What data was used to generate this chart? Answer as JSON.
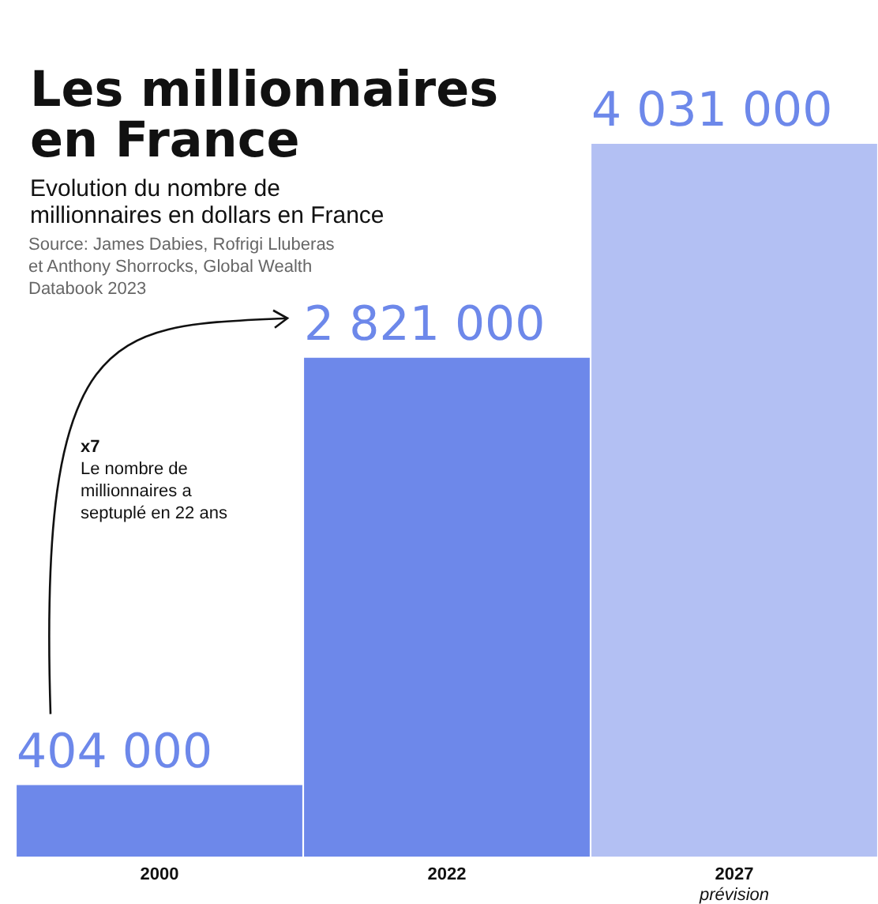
{
  "chart_data": {
    "type": "bar",
    "title": "Les millionnaires en France",
    "subtitle": "Evolution du nombre de millionnaires en dollars en France",
    "categories": [
      "2000",
      "2022",
      "2027"
    ],
    "values": [
      404000,
      2821000,
      4031000
    ],
    "colors": [
      "#6d88ea",
      "#6d88ea",
      "#b3c0f3"
    ],
    "value_labels": [
      "404 000",
      "2 821 000",
      "4 031 000"
    ],
    "annotations": [
      "Source: James Dabies, Rofrigi Lluberas et Anthony Shorrocks, Global Wealth Databook 2023",
      "x7\nLe nombre de\nmillionnaires a\nseptuplé en 22 ans",
      "prévision"
    ]
  }
}
